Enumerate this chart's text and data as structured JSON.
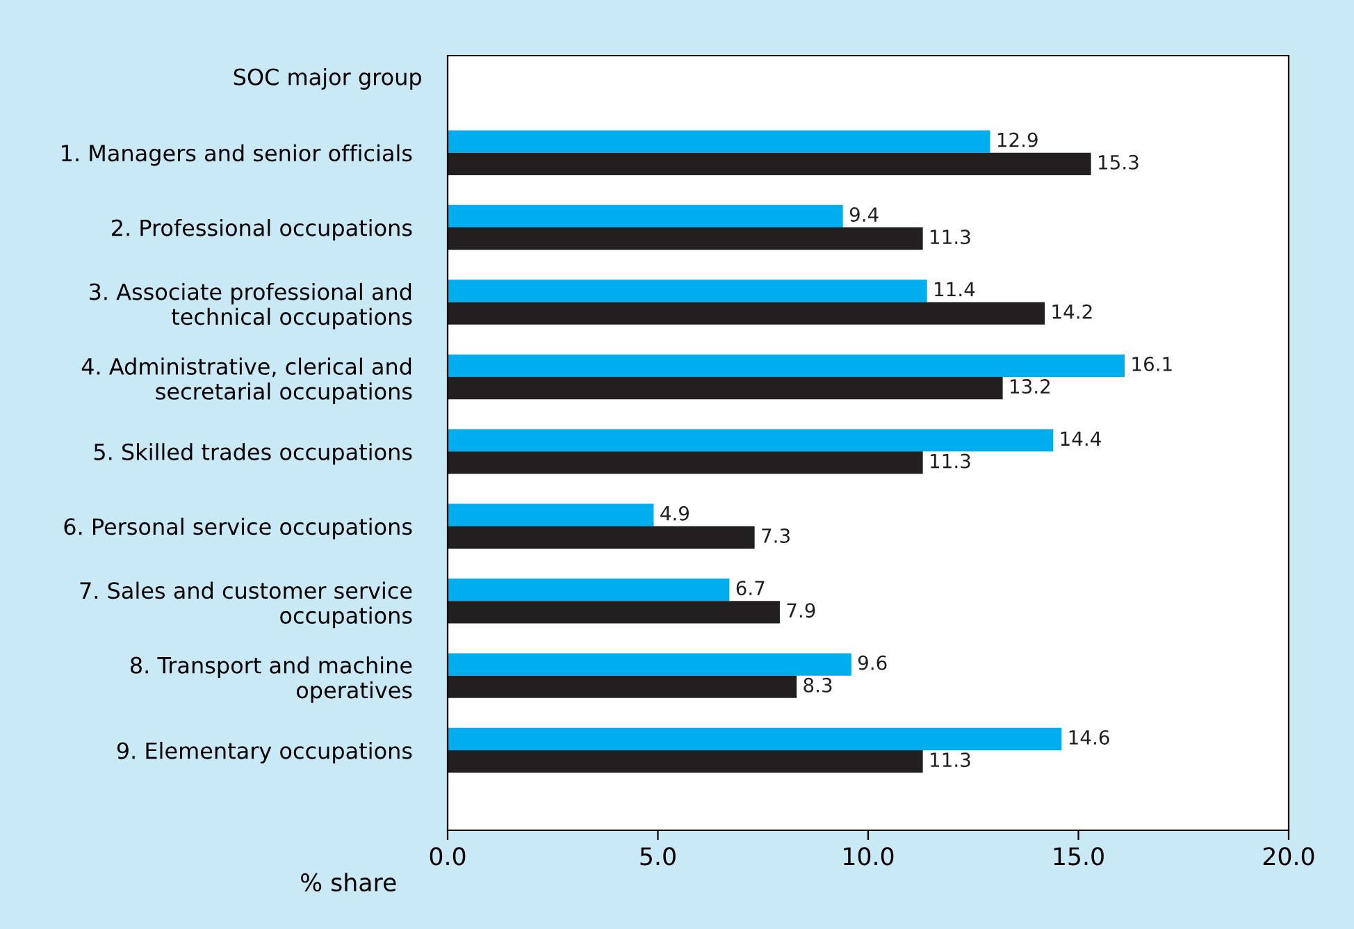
{
  "chart_data": {
    "type": "bar",
    "orientation": "horizontal",
    "ylabel": "SOC major group",
    "xlabel": "% share",
    "categories": [
      "1. Managers and senior officials",
      "2. Professional occupations",
      "3. Associate professional and\ntechnical occupations",
      "4. Administrative, clerical and\nsecretarial occupations",
      "5. Skilled trades occupations",
      "6. Personal service occupations",
      "7. Sales and customer service\noccupations",
      "8. Transport and machine\noperatives",
      "9. Elementary occupations"
    ],
    "series": [
      {
        "color": "#00aeef",
        "values": [
          12.9,
          9.4,
          11.4,
          16.1,
          14.4,
          4.9,
          6.7,
          9.6,
          14.6
        ]
      },
      {
        "color": "#231f20",
        "values": [
          15.3,
          11.3,
          14.2,
          13.2,
          11.3,
          7.3,
          7.9,
          8.3,
          11.3
        ]
      }
    ],
    "xlim": [
      0,
      20
    ],
    "xticks": [
      {
        "value": 0,
        "label": "0.0"
      },
      {
        "value": 5,
        "label": "5.0"
      },
      {
        "value": 10,
        "label": "10.0"
      },
      {
        "value": 15,
        "label": "15.0"
      },
      {
        "value": 20,
        "label": "20.0"
      }
    ],
    "data_labels": true,
    "grid": false,
    "legend": false
  }
}
